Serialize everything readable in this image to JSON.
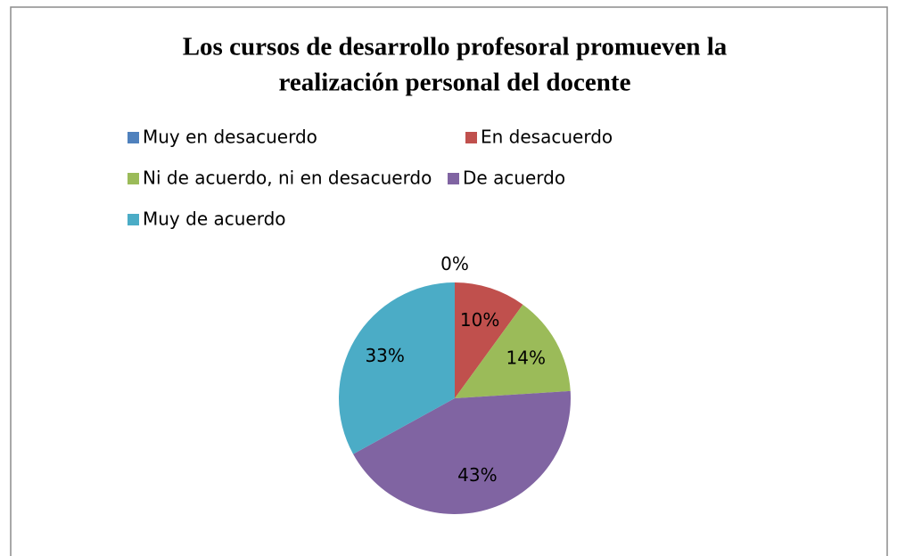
{
  "chart_data": {
    "type": "pie",
    "title": [
      "Los cursos de desarrollo profesoral promueven la",
      "realización personal del docente"
    ],
    "categories": [
      "Muy en desacuerdo",
      "En desacuerdo",
      "Ni de acuerdo, ni en desacuerdo",
      "De acuerdo",
      "Muy de acuerdo"
    ],
    "values": [
      0,
      10,
      14,
      43,
      33
    ],
    "value_labels": [
      "0%",
      "10%",
      "14%",
      "43%",
      "33%"
    ],
    "colors": [
      "#4f81bd",
      "#c0504d",
      "#9bbb59",
      "#8064a2",
      "#4bacc6"
    ],
    "legend": "top"
  }
}
